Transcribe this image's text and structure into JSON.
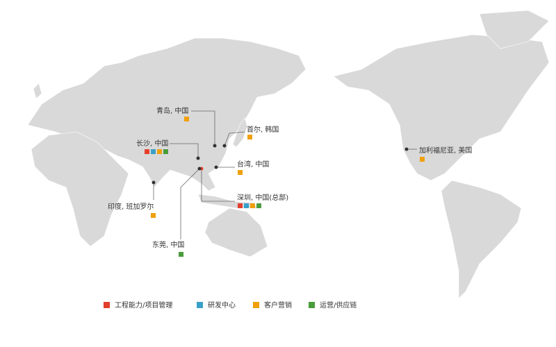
{
  "locations": [
    {
      "label": "青岛, 中国",
      "colors": [
        "#f0a00a"
      ]
    },
    {
      "label": "首尔, 韩国",
      "colors": [
        "#f0a00a"
      ]
    },
    {
      "label": "长沙, 中国",
      "colors": [
        "#e2402c",
        "#3aa0c8",
        "#f0a00a",
        "#4a9c3c"
      ]
    },
    {
      "label": "台湾, 中国",
      "colors": [
        "#f0a00a"
      ]
    },
    {
      "label": "深圳, 中国(总部)",
      "colors": [
        "#e2402c",
        "#3aa0c8",
        "#f0a00a",
        "#4a9c3c"
      ]
    },
    {
      "label": "东莞, 中国",
      "colors": [
        "#4a9c3c"
      ]
    },
    {
      "label": "印度, 班加罗尔",
      "colors": [
        "#f0a00a"
      ]
    },
    {
      "label": "加利福尼亚, 美国",
      "colors": [
        "#f0a00a"
      ]
    }
  ],
  "legend": [
    {
      "label": "工程能力/项目管理",
      "color": "#e2402c"
    },
    {
      "label": "研发中心",
      "color": "#3aa0c8"
    },
    {
      "label": "客户营销",
      "color": "#f0a00a"
    },
    {
      "label": "运营/供应链",
      "color": "#4a9c3c"
    }
  ]
}
